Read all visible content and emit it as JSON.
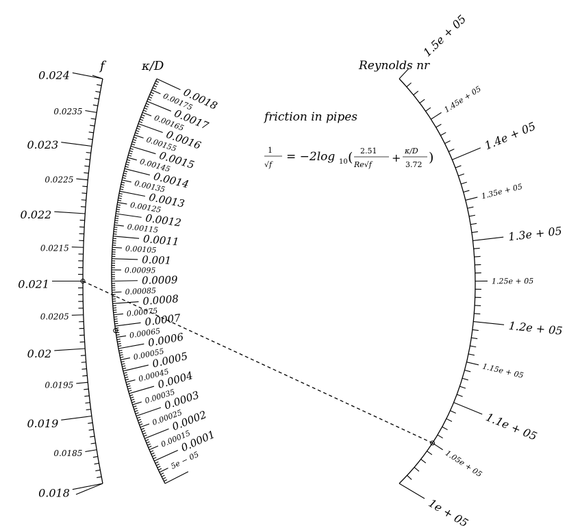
{
  "scales": {
    "f": {
      "title": "f",
      "major_labels": [
        "0.018",
        "0.019",
        "0.02",
        "0.021",
        "0.022",
        "0.023",
        "0.024"
      ],
      "minor_labels": [
        "0.0185",
        "0.0195",
        "0.0205",
        "0.0215",
        "0.0225",
        "0.0235"
      ]
    },
    "kappa_d": {
      "title": "κ/D",
      "major_labels": [
        "0.0001",
        "0.0002",
        "0.0003",
        "0.0004",
        "0.0005",
        "0.0006",
        "0.0007",
        "0.0008",
        "0.0009",
        "0.001",
        "0.0011",
        "0.0012",
        "0.0013",
        "0.0014",
        "0.0015",
        "0.0016",
        "0.0017",
        "0.0018"
      ],
      "minor_labels": [
        "5e − 05",
        "0.00015",
        "0.00025",
        "0.00035",
        "0.00045",
        "0.00055",
        "0.00065",
        "0.00075",
        "0.00085",
        "0.00095",
        "0.00105",
        "0.00115",
        "0.00125",
        "0.00135",
        "0.00145",
        "0.00155",
        "0.00165",
        "0.00175"
      ]
    },
    "reynolds": {
      "title": "Reynolds  nr",
      "major_labels": [
        "1e + 05",
        "1.1e + 05",
        "1.2e + 05",
        "1.3e + 05",
        "1.4e + 05",
        "1.5e + 05"
      ],
      "minor_labels": [
        "1.05e + 05",
        "1.15e + 05",
        "1.25e + 05",
        "1.35e + 05",
        "1.45e + 05"
      ]
    }
  },
  "annotation": {
    "heading": "friction in pipes",
    "formula_lhs_num": "1",
    "formula_lhs_den": "√f",
    "formula_eq": "= −2log",
    "formula_sub": "10",
    "formula_t1_num": "2.51",
    "formula_t1_den": "Re√f",
    "formula_plus": "+",
    "formula_t2_num": "κ/D",
    "formula_t2_den": "3.72"
  },
  "example_isopleth": {
    "f": 0.021,
    "kappa_d": 0.00068,
    "reynolds": 105000
  }
}
